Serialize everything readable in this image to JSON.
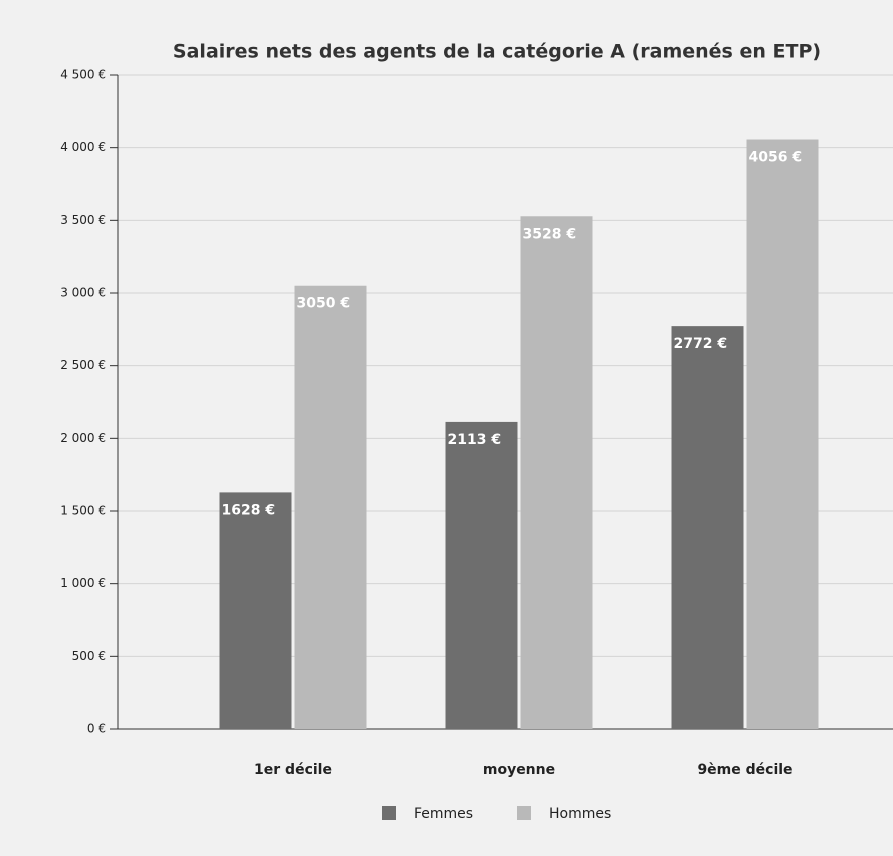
{
  "chart_data": {
    "type": "bar",
    "title": "Salaires nets des agents de la catégorie A (ramenés en ETP)",
    "categories": [
      "1er décile",
      "moyenne",
      "9ème décile"
    ],
    "series": [
      {
        "name": "Femmes",
        "color": "#6e6e6e",
        "values": [
          1628,
          2113,
          2772
        ],
        "value_labels": [
          "1628 €",
          "2113 €",
          "2772 €"
        ]
      },
      {
        "name": "Hommes",
        "color": "#b9b9b9",
        "values": [
          3050,
          3528,
          4056
        ],
        "value_labels": [
          "3050 €",
          "3528 €",
          "4056 €"
        ]
      }
    ],
    "ylim": [
      0,
      4500
    ],
    "yticks": [
      {
        "value": 0,
        "label": "0 €"
      },
      {
        "value": 500,
        "label": "500 €"
      },
      {
        "value": 1000,
        "label": "1 000 €"
      },
      {
        "value": 1500,
        "label": "1 500 €"
      },
      {
        "value": 2000,
        "label": "2 000 €"
      },
      {
        "value": 2500,
        "label": "2 500 €"
      },
      {
        "value": 3000,
        "label": "3 000 €"
      },
      {
        "value": 3500,
        "label": "3 500 €"
      },
      {
        "value": 4000,
        "label": "4 000 €"
      },
      {
        "value": 4500,
        "label": "4 500 €"
      }
    ],
    "grid": true,
    "legend": "bottom"
  }
}
